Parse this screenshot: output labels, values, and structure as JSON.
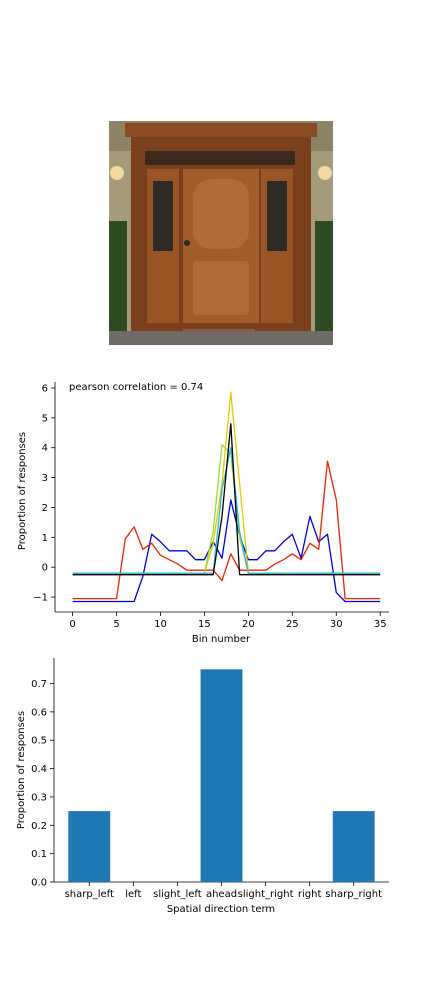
{
  "chart_data": [
    {
      "type": "line",
      "annotation": "pearson correlation = 0.74",
      "xlabel": "Bin number",
      "ylabel": "Proportion of responses",
      "xlim": [
        -2,
        36
      ],
      "ylim": [
        -1.5,
        6.2
      ],
      "xticks": [
        "0",
        "5",
        "10",
        "15",
        "20",
        "25",
        "30",
        "35"
      ],
      "yticks": [
        "−1",
        "0",
        "1",
        "2",
        "3",
        "4",
        "5",
        "6"
      ],
      "grid": false,
      "series": [
        {
          "color": "#0000dd",
          "x": [
            0,
            1,
            2,
            3,
            4,
            5,
            6,
            7,
            8,
            9,
            10,
            11,
            12,
            13,
            14,
            15,
            16,
            17,
            18,
            19,
            20,
            21,
            22,
            23,
            24,
            25,
            26,
            27,
            28,
            29,
            30,
            31,
            32,
            33,
            34,
            35
          ],
          "y": [
            -1.15,
            -1.15,
            -1.15,
            -1.15,
            -1.15,
            -1.15,
            -1.15,
            -1.15,
            -0.3,
            1.1,
            0.85,
            0.55,
            0.55,
            0.55,
            0.25,
            0.25,
            0.85,
            0.3,
            2.25,
            1.05,
            0.25,
            0.25,
            0.55,
            0.55,
            0.85,
            1.1,
            0.3,
            1.7,
            0.85,
            1.1,
            -0.85,
            -1.15,
            -1.15,
            -1.15,
            -1.15,
            -1.15
          ]
        },
        {
          "color": "#ee2200",
          "x": [
            0,
            1,
            2,
            3,
            4,
            5,
            6,
            7,
            8,
            9,
            10,
            11,
            12,
            13,
            14,
            15,
            16,
            17,
            18,
            19,
            20,
            21,
            22,
            23,
            24,
            25,
            26,
            27,
            28,
            29,
            30,
            31,
            32,
            33,
            34,
            35
          ],
          "y": [
            -1.05,
            -1.05,
            -1.05,
            -1.05,
            -1.05,
            -1.05,
            0.95,
            1.35,
            0.6,
            0.8,
            0.4,
            0.25,
            0.1,
            -0.1,
            -0.1,
            -0.1,
            -0.1,
            -0.45,
            0.45,
            -0.1,
            -0.1,
            -0.1,
            -0.1,
            0.1,
            0.25,
            0.45,
            0.25,
            0.8,
            0.6,
            3.55,
            2.25,
            -1.05,
            -1.05,
            -1.05,
            -1.05,
            -1.05
          ]
        },
        {
          "color": "#ddcc00",
          "x": [
            0,
            15,
            16,
            17,
            18,
            19,
            20,
            35
          ],
          "y": [
            -0.2,
            -0.2,
            0.8,
            2.8,
            5.85,
            2.8,
            -0.2,
            -0.2
          ]
        },
        {
          "color": "#99dd33",
          "x": [
            0,
            15,
            16,
            17,
            18,
            19,
            20,
            35
          ],
          "y": [
            -0.2,
            -0.2,
            1.2,
            4.1,
            3.8,
            1.0,
            -0.2,
            -0.2
          ]
        },
        {
          "color": "#22bbdd",
          "x": [
            0,
            16,
            17,
            18,
            19,
            20,
            35
          ],
          "y": [
            -0.2,
            -0.2,
            2.6,
            4.0,
            1.2,
            -0.2,
            -0.2
          ]
        },
        {
          "color": "#000000",
          "x": [
            0,
            16,
            17,
            18,
            19,
            35
          ],
          "y": [
            -0.25,
            -0.25,
            1.7,
            4.8,
            -0.25,
            -0.25
          ]
        }
      ]
    },
    {
      "type": "bar",
      "xlabel": "Spatial direction term",
      "ylabel": "Proportion of responses",
      "categories": [
        "sharp_left",
        "left",
        "slight_left",
        "ahead",
        "slight_right",
        "right",
        "sharp_right"
      ],
      "values": [
        0.25,
        0.0,
        0.0,
        0.75,
        0.0,
        0.0,
        0.25
      ],
      "ylim": [
        0,
        0.79
      ],
      "yticks": [
        "0.0",
        "0.1",
        "0.2",
        "0.3",
        "0.4",
        "0.5",
        "0.6",
        "0.7"
      ],
      "bar_color": "#1f77b4",
      "grid": false
    }
  ]
}
